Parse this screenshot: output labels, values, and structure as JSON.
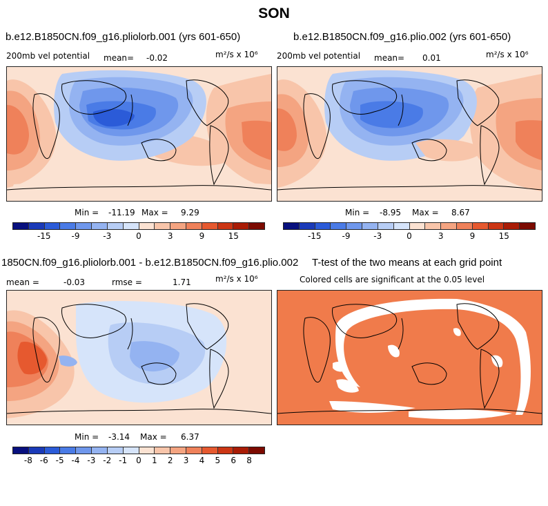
{
  "title": "SON",
  "colors": {
    "red_fill": "#f07b4b",
    "blue_main": "#3d75dc",
    "palette": [
      "#08107e",
      "#1a3ab8",
      "#2b5bd8",
      "#4a7be6",
      "#6f97ec",
      "#94b3f1",
      "#b7cdf5",
      "#d6e4fa",
      "#fbe2d2",
      "#f8c5aa",
      "#f4a481",
      "#ef815a",
      "#e6592f",
      "#cc3614",
      "#a91c06",
      "#7c0a00"
    ]
  },
  "panel_top_left": {
    "title": "b.e12.B1850CN.f09_g16.pliolorb.001 (yrs 601-650)",
    "variable": "200mb vel potential",
    "mean_label": "mean=",
    "mean_value": "-0.02",
    "units": "m²/s x 10⁶",
    "min_label": "Min =",
    "min_value": "-11.19",
    "max_label": "Max =",
    "max_value": "9.29",
    "tick_labels": [
      "-15",
      "-9",
      "-3",
      "0",
      "3",
      "9",
      "15"
    ]
  },
  "panel_top_right": {
    "title": "b.e12.B1850CN.f09_g16.plio.002 (yrs 601-650)",
    "variable": "200mb vel potential",
    "mean_label": "mean=",
    "mean_value": "0.01",
    "units": "m²/s x 10⁶",
    "min_label": "Min =",
    "min_value": "-8.95",
    "max_label": "Max =",
    "max_value": "8.67",
    "tick_labels": [
      "-15",
      "-9",
      "-3",
      "0",
      "3",
      "9",
      "15"
    ]
  },
  "panel_bottom_left": {
    "title": "1850CN.f09_g16.pliolorb.001 - b.e12.B1850CN.f09_g16.plio.002",
    "mean_label": "mean =",
    "mean_value": "-0.03",
    "rmse_label": "rmse =",
    "rmse_value": "1.71",
    "units": "m²/s x 10⁶",
    "min_label": "Min =",
    "min_value": "-3.14",
    "max_label": "Max =",
    "max_value": "6.37",
    "tick_labels": [
      "-8",
      "-6",
      "-5",
      "-4",
      "-3",
      "-2",
      "-1",
      "0",
      "1",
      "2",
      "3",
      "4",
      "5",
      "6",
      "8"
    ]
  },
  "panel_bottom_right": {
    "title": "T-test of the two means at each grid point",
    "subtitle": "Colored cells are significant at the 0.05 level"
  }
}
